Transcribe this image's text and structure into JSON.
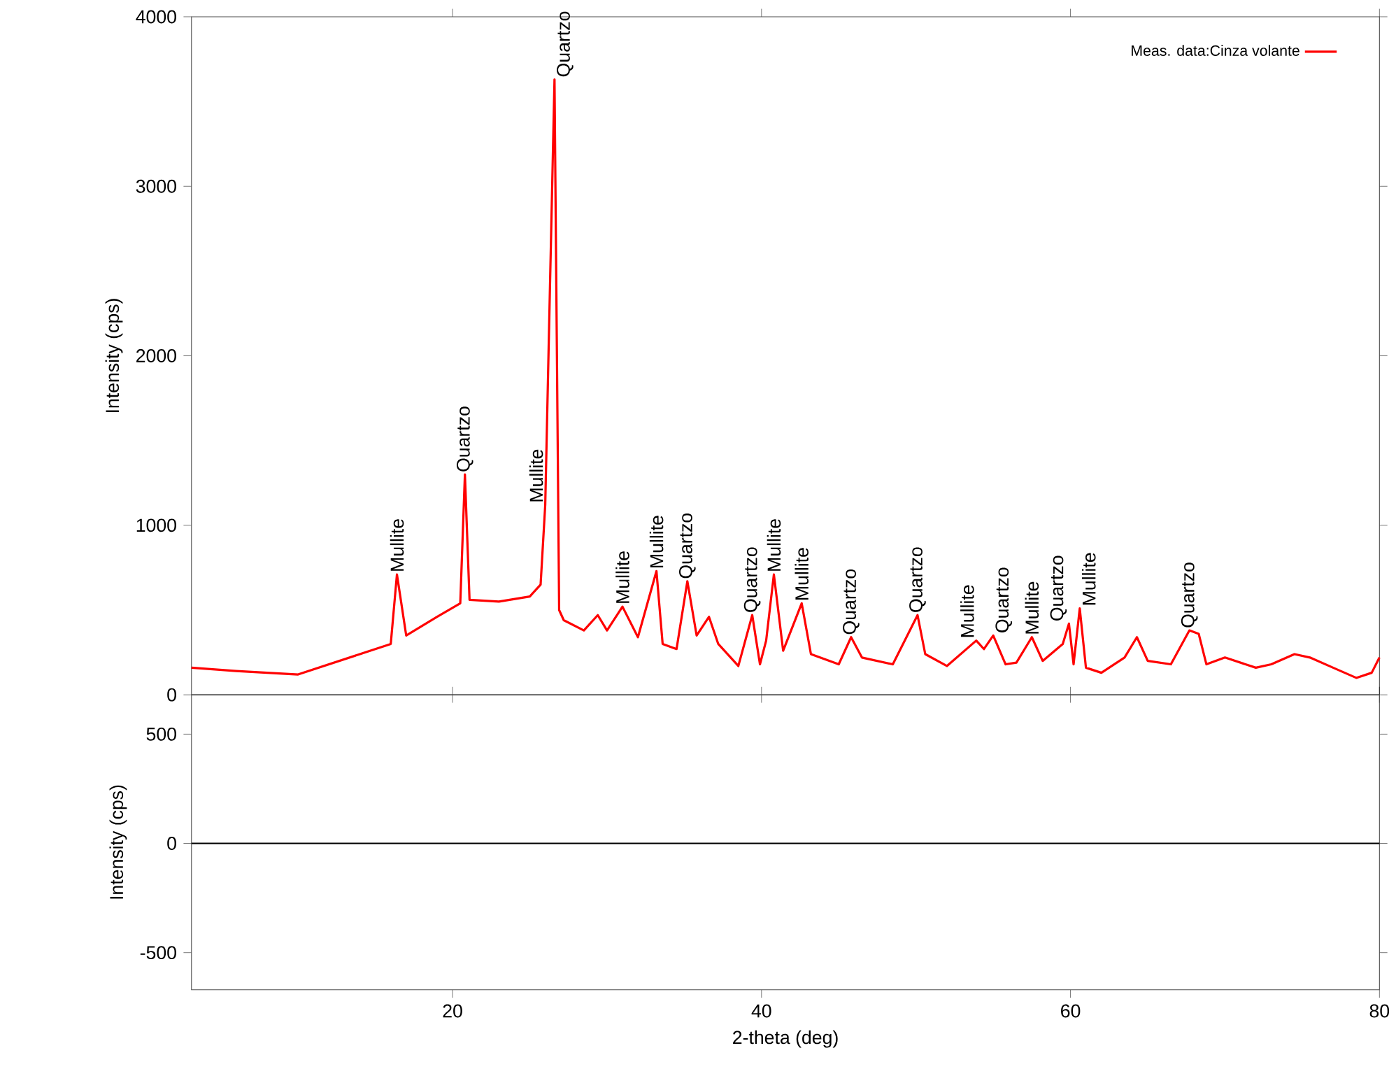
{
  "chart_data": [
    {
      "type": "line",
      "ylabel": "Intensity (cps)",
      "xlim": [
        3.1,
        80
      ],
      "ylim": [
        0,
        4000
      ],
      "xticks": [
        20,
        40,
        60,
        80
      ],
      "yticks": [
        0,
        1000,
        2000,
        3000,
        4000
      ],
      "tick_labels": "y",
      "legend": "top right",
      "series": [
        {
          "name": "Meas. data:Cinza volante",
          "color": "#ff0000",
          "x": [
            3.1,
            6,
            10,
            14,
            16,
            16.4,
            17,
            19,
            20.5,
            20.8,
            21.1,
            23,
            25,
            25.7,
            26.0,
            26.3,
            26.6,
            26.9,
            27.2,
            28.5,
            29.4,
            30,
            31.0,
            32,
            33.2,
            33.6,
            34.5,
            35.2,
            35.8,
            36.6,
            37.2,
            38.5,
            39.4,
            39.9,
            40.3,
            40.8,
            41.4,
            42.6,
            43.2,
            45,
            45.8,
            46.5,
            48.5,
            50.1,
            50.6,
            52,
            53.9,
            54.4,
            55.0,
            55.8,
            56.5,
            57.5,
            58.2,
            59.5,
            59.9,
            60.2,
            60.6,
            61.0,
            62,
            63.5,
            64.3,
            65,
            66.5,
            67.7,
            68.3,
            68.8,
            70,
            72,
            73,
            74.5,
            75.5,
            77,
            78.5,
            79.5,
            80
          ],
          "values": [
            160,
            140,
            120,
            240,
            300,
            710,
            350,
            460,
            540,
            1300,
            560,
            550,
            580,
            650,
            1120,
            2380,
            3630,
            500,
            440,
            380,
            470,
            380,
            520,
            340,
            730,
            300,
            270,
            670,
            350,
            460,
            300,
            170,
            470,
            180,
            320,
            710,
            260,
            540,
            240,
            180,
            340,
            220,
            180,
            470,
            240,
            170,
            320,
            270,
            350,
            180,
            190,
            340,
            200,
            300,
            420,
            180,
            510,
            160,
            130,
            220,
            340,
            200,
            180,
            380,
            360,
            180,
            220,
            160,
            180,
            240,
            220,
            160,
            100,
            130,
            220
          ]
        }
      ],
      "annotations": [
        {
          "text": "Mullite",
          "x": 16.4,
          "y": 710
        },
        {
          "text": "Quartzo",
          "x": 20.8,
          "y": 1300
        },
        {
          "text": "Mullite",
          "x": 26.0,
          "y": 1120
        },
        {
          "text": "Quartzo",
          "x": 26.6,
          "y": 3630
        },
        {
          "text": "Mullite",
          "x": 31.0,
          "y": 520
        },
        {
          "text": "Mullite",
          "x": 33.2,
          "y": 730
        },
        {
          "text": "Quartzo",
          "x": 35.2,
          "y": 670
        },
        {
          "text": "Quartzo",
          "x": 39.4,
          "y": 470
        },
        {
          "text": "Mullite",
          "x": 40.8,
          "y": 710
        },
        {
          "text": "Mullite",
          "x": 42.6,
          "y": 540
        },
        {
          "text": "Quartzo",
          "x": 45.8,
          "y": 340
        },
        {
          "text": "Quartzo",
          "x": 50.1,
          "y": 470
        },
        {
          "text": "Mullite",
          "x": 53.9,
          "y": 320
        },
        {
          "text": "Quartzo",
          "x": 55.0,
          "y": 350
        },
        {
          "text": "Mullite",
          "x": 57.5,
          "y": 340
        },
        {
          "text": "Quartzo",
          "x": 59.9,
          "y": 420
        },
        {
          "text": "Mullite",
          "x": 60.6,
          "y": 510
        },
        {
          "text": "Quartzo",
          "x": 67.7,
          "y": 380
        }
      ]
    },
    {
      "type": "line",
      "xlabel": "2-theta (deg)",
      "ylabel": "Intensity (cps)",
      "xlim": [
        3.1,
        80
      ],
      "ylim": [
        -670,
        680
      ],
      "xticks": [
        20,
        40,
        60,
        80
      ],
      "yticks": [
        -500,
        0,
        500
      ],
      "ref_lines": [
        {
          "axis": "y",
          "value": 0,
          "color": "#000000"
        }
      ]
    }
  ]
}
